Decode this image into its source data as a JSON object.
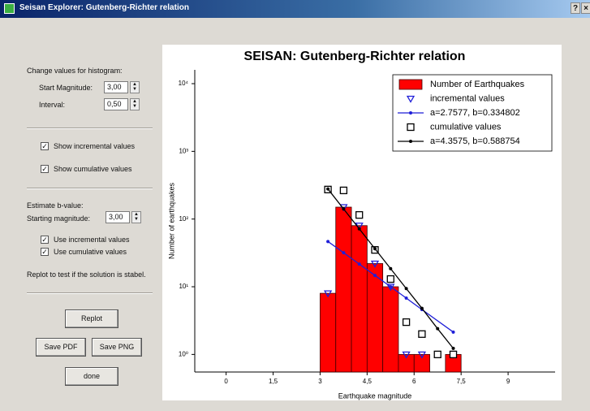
{
  "window": {
    "title": "Seisan Explorer: Gutenberg-Richter relation",
    "help_button": "?",
    "close_button": "×"
  },
  "controls": {
    "histogram_heading": "Change values for histogram:",
    "start_magnitude_label": "Start Magnitude:",
    "start_magnitude_value": "3,00",
    "interval_label": "Interval:",
    "interval_value": "0,50",
    "show_incremental": "Show incremental values",
    "show_cumulative": "Show cumulative values",
    "bvalue_heading": "Estimate b-value:",
    "starting_magnitude_label": "Starting magnitude:",
    "starting_magnitude_value": "3,00",
    "use_incremental": "Use incremental values",
    "use_cumulative": "Use cumulative values",
    "replot_note": "Replot to test if the solution is stabel.",
    "replot_button": "Replot",
    "save_pdf_button": "Save PDF",
    "save_png_button": "Save PNG",
    "done_button": "done"
  },
  "chart_data": {
    "type": "histogram",
    "title": "SEISAN: Gutenberg-Richter relation",
    "x_label": "Earthquake magnitude",
    "y_label": "Number of earthquakes",
    "log_y": true,
    "legend": "upper right",
    "xlim": [
      -1,
      10.5
    ],
    "xticks": [
      0,
      {
        "value": 1.5,
        "label": "1,5"
      },
      3,
      {
        "value": 4.5,
        "label": "4,5"
      },
      6,
      {
        "value": 7.5,
        "label": "7,5"
      },
      9
    ],
    "ylim": [
      0.55,
      16000
    ],
    "yticks": [
      {
        "value": 1,
        "label": "10⁰"
      },
      {
        "value": 10,
        "label": "10¹"
      },
      {
        "value": 100,
        "label": "10²"
      },
      {
        "value": 1000,
        "label": "10³"
      },
      {
        "value": 10000,
        "label": "10⁴"
      }
    ],
    "histogram": {
      "name": "Number of Earthquakes",
      "color": "#ff0000",
      "bins": [
        3,
        3.5,
        4,
        4.5,
        5,
        5.5,
        6,
        6.5,
        7,
        7.5
      ],
      "values": [
        8,
        150,
        80,
        22,
        10,
        1,
        1,
        0,
        1
      ]
    },
    "series": [
      {
        "name": "incremental values",
        "type": "scatter",
        "marker": "triangle",
        "color": "#1f1fd8",
        "x": [
          3.25,
          3.75,
          4.25,
          4.75,
          5.25,
          5.75,
          6.25,
          7.25
        ],
        "values": [
          8,
          150,
          80,
          22,
          10,
          1,
          1,
          1
        ]
      },
      {
        "name": "a=2.7577, b=0.334802",
        "type": "line",
        "marker": "dot",
        "color": "#1f1fd8",
        "x": [
          3.25,
          3.75,
          4.25,
          4.75,
          5.25,
          5.75,
          6.25,
          7.25
        ],
        "values": [
          46.6,
          31.8,
          21.6,
          14.7,
          10.0,
          6.8,
          4.6,
          2.14
        ]
      },
      {
        "name": "cumulative values",
        "type": "scatter",
        "marker": "square",
        "color": "#000000",
        "x": [
          3.25,
          3.75,
          4.25,
          4.75,
          5.25,
          5.75,
          6.25,
          6.75,
          7.25
        ],
        "values": [
          273,
          265,
          115,
          35,
          13,
          3,
          2,
          1,
          1
        ]
      },
      {
        "name": "a=4.3575, b=0.588754",
        "type": "line",
        "marker": "dot",
        "color": "#000000",
        "x": [
          3.25,
          3.75,
          4.25,
          4.75,
          5.25,
          5.75,
          6.25,
          6.75,
          7.25
        ],
        "values": [
          278,
          141,
          71.7,
          36.4,
          18.5,
          9.4,
          4.8,
          2.4,
          1.23
        ]
      }
    ]
  }
}
